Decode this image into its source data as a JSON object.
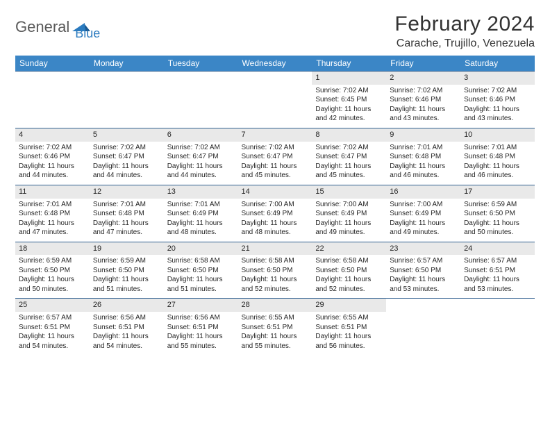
{
  "logo": {
    "part1": "General",
    "part2": "Blue"
  },
  "title": "February 2024",
  "location": "Carache, Trujillo, Venezuela",
  "colors": {
    "header_bg": "#3b86c6",
    "header_text": "#ffffff",
    "daynum_bg": "#e9e9e9",
    "row_border": "#2f5f8f",
    "logo_gray": "#5a5a5a",
    "logo_blue": "#2b7bbf",
    "text": "#252525",
    "background": "#ffffff"
  },
  "day_headers": [
    "Sunday",
    "Monday",
    "Tuesday",
    "Wednesday",
    "Thursday",
    "Friday",
    "Saturday"
  ],
  "weeks": [
    [
      {
        "empty": true
      },
      {
        "empty": true
      },
      {
        "empty": true
      },
      {
        "empty": true
      },
      {
        "num": "1",
        "sunrise": "7:02 AM",
        "sunset": "6:45 PM",
        "daylight": "11 hours and 42 minutes."
      },
      {
        "num": "2",
        "sunrise": "7:02 AM",
        "sunset": "6:46 PM",
        "daylight": "11 hours and 43 minutes."
      },
      {
        "num": "3",
        "sunrise": "7:02 AM",
        "sunset": "6:46 PM",
        "daylight": "11 hours and 43 minutes."
      }
    ],
    [
      {
        "num": "4",
        "sunrise": "7:02 AM",
        "sunset": "6:46 PM",
        "daylight": "11 hours and 44 minutes."
      },
      {
        "num": "5",
        "sunrise": "7:02 AM",
        "sunset": "6:47 PM",
        "daylight": "11 hours and 44 minutes."
      },
      {
        "num": "6",
        "sunrise": "7:02 AM",
        "sunset": "6:47 PM",
        "daylight": "11 hours and 44 minutes."
      },
      {
        "num": "7",
        "sunrise": "7:02 AM",
        "sunset": "6:47 PM",
        "daylight": "11 hours and 45 minutes."
      },
      {
        "num": "8",
        "sunrise": "7:02 AM",
        "sunset": "6:47 PM",
        "daylight": "11 hours and 45 minutes."
      },
      {
        "num": "9",
        "sunrise": "7:01 AM",
        "sunset": "6:48 PM",
        "daylight": "11 hours and 46 minutes."
      },
      {
        "num": "10",
        "sunrise": "7:01 AM",
        "sunset": "6:48 PM",
        "daylight": "11 hours and 46 minutes."
      }
    ],
    [
      {
        "num": "11",
        "sunrise": "7:01 AM",
        "sunset": "6:48 PM",
        "daylight": "11 hours and 47 minutes."
      },
      {
        "num": "12",
        "sunrise": "7:01 AM",
        "sunset": "6:48 PM",
        "daylight": "11 hours and 47 minutes."
      },
      {
        "num": "13",
        "sunrise": "7:01 AM",
        "sunset": "6:49 PM",
        "daylight": "11 hours and 48 minutes."
      },
      {
        "num": "14",
        "sunrise": "7:00 AM",
        "sunset": "6:49 PM",
        "daylight": "11 hours and 48 minutes."
      },
      {
        "num": "15",
        "sunrise": "7:00 AM",
        "sunset": "6:49 PM",
        "daylight": "11 hours and 49 minutes."
      },
      {
        "num": "16",
        "sunrise": "7:00 AM",
        "sunset": "6:49 PM",
        "daylight": "11 hours and 49 minutes."
      },
      {
        "num": "17",
        "sunrise": "6:59 AM",
        "sunset": "6:50 PM",
        "daylight": "11 hours and 50 minutes."
      }
    ],
    [
      {
        "num": "18",
        "sunrise": "6:59 AM",
        "sunset": "6:50 PM",
        "daylight": "11 hours and 50 minutes."
      },
      {
        "num": "19",
        "sunrise": "6:59 AM",
        "sunset": "6:50 PM",
        "daylight": "11 hours and 51 minutes."
      },
      {
        "num": "20",
        "sunrise": "6:58 AM",
        "sunset": "6:50 PM",
        "daylight": "11 hours and 51 minutes."
      },
      {
        "num": "21",
        "sunrise": "6:58 AM",
        "sunset": "6:50 PM",
        "daylight": "11 hours and 52 minutes."
      },
      {
        "num": "22",
        "sunrise": "6:58 AM",
        "sunset": "6:50 PM",
        "daylight": "11 hours and 52 minutes."
      },
      {
        "num": "23",
        "sunrise": "6:57 AM",
        "sunset": "6:50 PM",
        "daylight": "11 hours and 53 minutes."
      },
      {
        "num": "24",
        "sunrise": "6:57 AM",
        "sunset": "6:51 PM",
        "daylight": "11 hours and 53 minutes."
      }
    ],
    [
      {
        "num": "25",
        "sunrise": "6:57 AM",
        "sunset": "6:51 PM",
        "daylight": "11 hours and 54 minutes."
      },
      {
        "num": "26",
        "sunrise": "6:56 AM",
        "sunset": "6:51 PM",
        "daylight": "11 hours and 54 minutes."
      },
      {
        "num": "27",
        "sunrise": "6:56 AM",
        "sunset": "6:51 PM",
        "daylight": "11 hours and 55 minutes."
      },
      {
        "num": "28",
        "sunrise": "6:55 AM",
        "sunset": "6:51 PM",
        "daylight": "11 hours and 55 minutes."
      },
      {
        "num": "29",
        "sunrise": "6:55 AM",
        "sunset": "6:51 PM",
        "daylight": "11 hours and 56 minutes."
      },
      {
        "empty": true
      },
      {
        "empty": true
      }
    ]
  ],
  "labels": {
    "sunrise_prefix": "Sunrise: ",
    "sunset_prefix": "Sunset: ",
    "daylight_prefix": "Daylight: "
  }
}
